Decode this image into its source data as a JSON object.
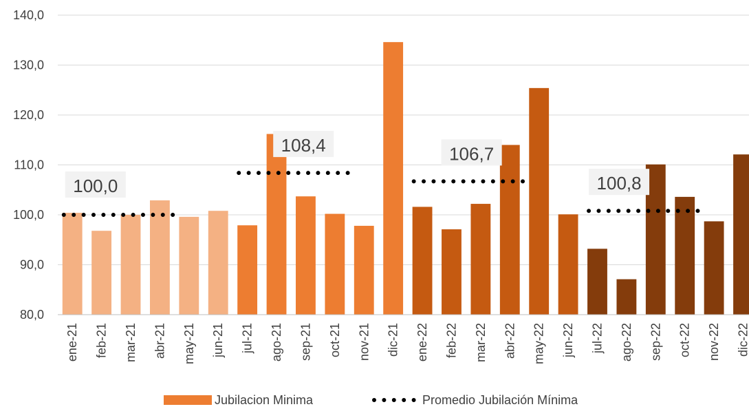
{
  "chart_data": {
    "type": "bar",
    "categories": [
      "ene-21",
      "feb-21",
      "mar-21",
      "abr-21",
      "may-21",
      "jun-21",
      "jul-21",
      "ago-21",
      "sep-21",
      "oct-21",
      "nov-21",
      "dic-21",
      "ene-22",
      "feb-22",
      "mar-22",
      "abr-22",
      "may-22",
      "jun-22",
      "jul-22",
      "ago-22",
      "sep-22",
      "oct-22",
      "nov-22",
      "dic-22"
    ],
    "series": [
      {
        "name": "Jubilacion Minima",
        "values": [
          100.4,
          96.8,
          100.0,
          102.9,
          99.6,
          100.8,
          97.9,
          116.2,
          103.7,
          100.2,
          97.8,
          134.6,
          101.6,
          97.1,
          102.2,
          114.0,
          125.4,
          100.1,
          93.2,
          87.1,
          110.1,
          103.6,
          98.7,
          112.1
        ]
      },
      {
        "name": "Promedio Jubilación Mínima",
        "segments": [
          {
            "from": "ene-21",
            "to": "jun-21",
            "value": 100.0,
            "label": "100,0"
          },
          {
            "from": "jul-21",
            "to": "dic-21",
            "value": 108.4,
            "label": "108,4"
          },
          {
            "from": "ene-22",
            "to": "jun-22",
            "value": 106.7,
            "label": "106,7"
          },
          {
            "from": "jul-22",
            "to": "dic-22",
            "value": 100.8,
            "label": "100,8"
          }
        ]
      }
    ],
    "bar_colors": [
      "#f4b183",
      "#f4b183",
      "#f4b183",
      "#f4b183",
      "#f4b183",
      "#f4b183",
      "#ed7d31",
      "#ed7d31",
      "#ed7d31",
      "#ed7d31",
      "#ed7d31",
      "#ed7d31",
      "#c55a11",
      "#c55a11",
      "#c55a11",
      "#c55a11",
      "#c55a11",
      "#c55a11",
      "#843c0c",
      "#843c0c",
      "#843c0c",
      "#843c0c",
      "#843c0c",
      "#843c0c"
    ],
    "y_ticks": [
      "80,0",
      "90,0",
      "100,0",
      "110,0",
      "120,0",
      "130,0",
      "140,0"
    ],
    "ylim": [
      80,
      140
    ],
    "grid": true,
    "legend_position": "bottom-center",
    "legend": [
      {
        "label": "Jubilacion Minima",
        "color": "#ed7d31"
      },
      {
        "label": "Promedio Jubilación Mínima",
        "color": "#000000"
      }
    ],
    "title": "",
    "xlabel": "",
    "ylabel": ""
  }
}
